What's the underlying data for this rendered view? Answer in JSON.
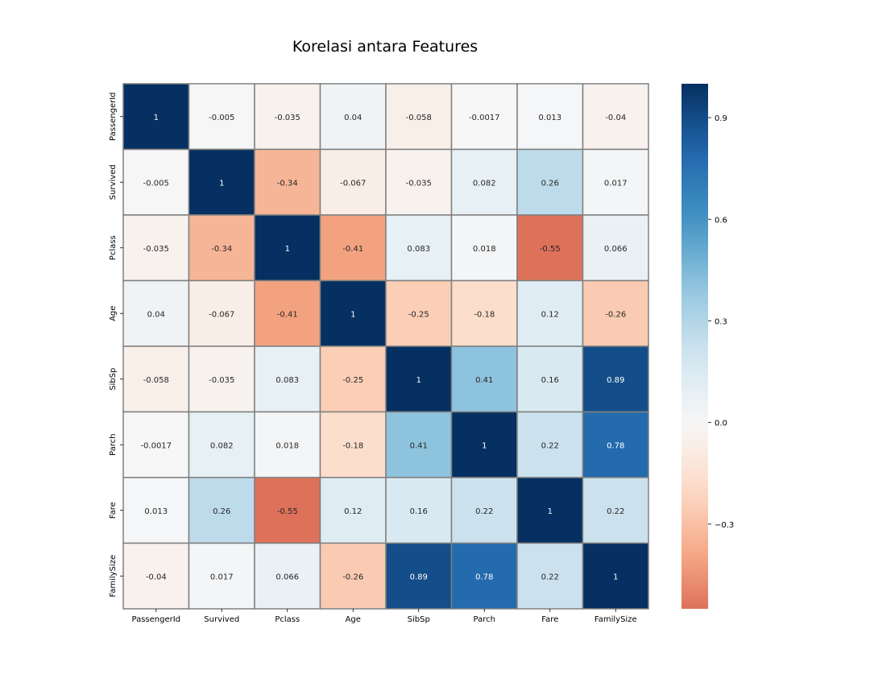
{
  "chart_data": {
    "type": "heatmap",
    "title": "Korelasi antara Features",
    "xlabel": "",
    "ylabel": "",
    "labels": [
      "PassengerId",
      "Survived",
      "Pclass",
      "Age",
      "SibSp",
      "Parch",
      "Fare",
      "FamilySize"
    ],
    "matrix": [
      [
        1,
        -0.005,
        -0.035,
        0.04,
        -0.058,
        -0.0017,
        0.013,
        -0.04
      ],
      [
        -0.005,
        1,
        -0.34,
        -0.067,
        -0.035,
        0.082,
        0.26,
        0.017
      ],
      [
        -0.035,
        -0.34,
        1,
        -0.41,
        0.083,
        0.018,
        -0.55,
        0.066
      ],
      [
        0.04,
        -0.067,
        -0.41,
        1,
        -0.25,
        -0.18,
        0.12,
        -0.26
      ],
      [
        -0.058,
        -0.035,
        0.083,
        -0.25,
        1,
        0.41,
        0.16,
        0.89
      ],
      [
        -0.0017,
        0.082,
        0.018,
        -0.18,
        0.41,
        1,
        0.22,
        0.78
      ],
      [
        0.013,
        0.26,
        -0.55,
        0.12,
        0.16,
        0.22,
        1,
        0.22
      ],
      [
        -0.04,
        0.017,
        0.066,
        -0.26,
        0.89,
        0.78,
        0.22,
        1
      ]
    ],
    "annotations": [
      [
        "1",
        "-0.005",
        "-0.035",
        "0.04",
        "-0.058",
        "-0.0017",
        "0.013",
        "-0.04"
      ],
      [
        "-0.005",
        "1",
        "-0.34",
        "-0.067",
        "-0.035",
        "0.082",
        "0.26",
        "0.017"
      ],
      [
        "-0.035",
        "-0.34",
        "1",
        "-0.41",
        "0.083",
        "0.018",
        "-0.55",
        "0.066"
      ],
      [
        "0.04",
        "-0.067",
        "-0.41",
        "1",
        "-0.25",
        "-0.18",
        "0.12",
        "-0.26"
      ],
      [
        "-0.058",
        "-0.035",
        "0.083",
        "-0.25",
        "1",
        "0.41",
        "0.16",
        "0.89"
      ],
      [
        "-0.0017",
        "0.082",
        "0.018",
        "-0.18",
        "0.41",
        "1",
        "0.22",
        "0.78"
      ],
      [
        "0.013",
        "0.26",
        "-0.55",
        "0.12",
        "0.16",
        "0.22",
        "1",
        "0.22"
      ],
      [
        "-0.04",
        "0.017",
        "0.066",
        "-0.26",
        "0.89",
        "0.78",
        "0.22",
        "1"
      ]
    ],
    "colormap": "RdBu (diverging, centered at 0)",
    "color_range": [
      -0.55,
      1
    ],
    "colorbar": {
      "ticks": [
        0.9,
        0.6,
        0.3,
        0.0,
        -0.3
      ],
      "tick_labels": [
        "0.9",
        "0.6",
        "0.3",
        "0.0",
        "−0.3"
      ],
      "placement": "right"
    },
    "grid": true,
    "colors": {
      "cell_border": "#808080",
      "negative_max": "#dc6e57",
      "neutral": "#f7f7f7",
      "positive_max": "#053061"
    }
  }
}
